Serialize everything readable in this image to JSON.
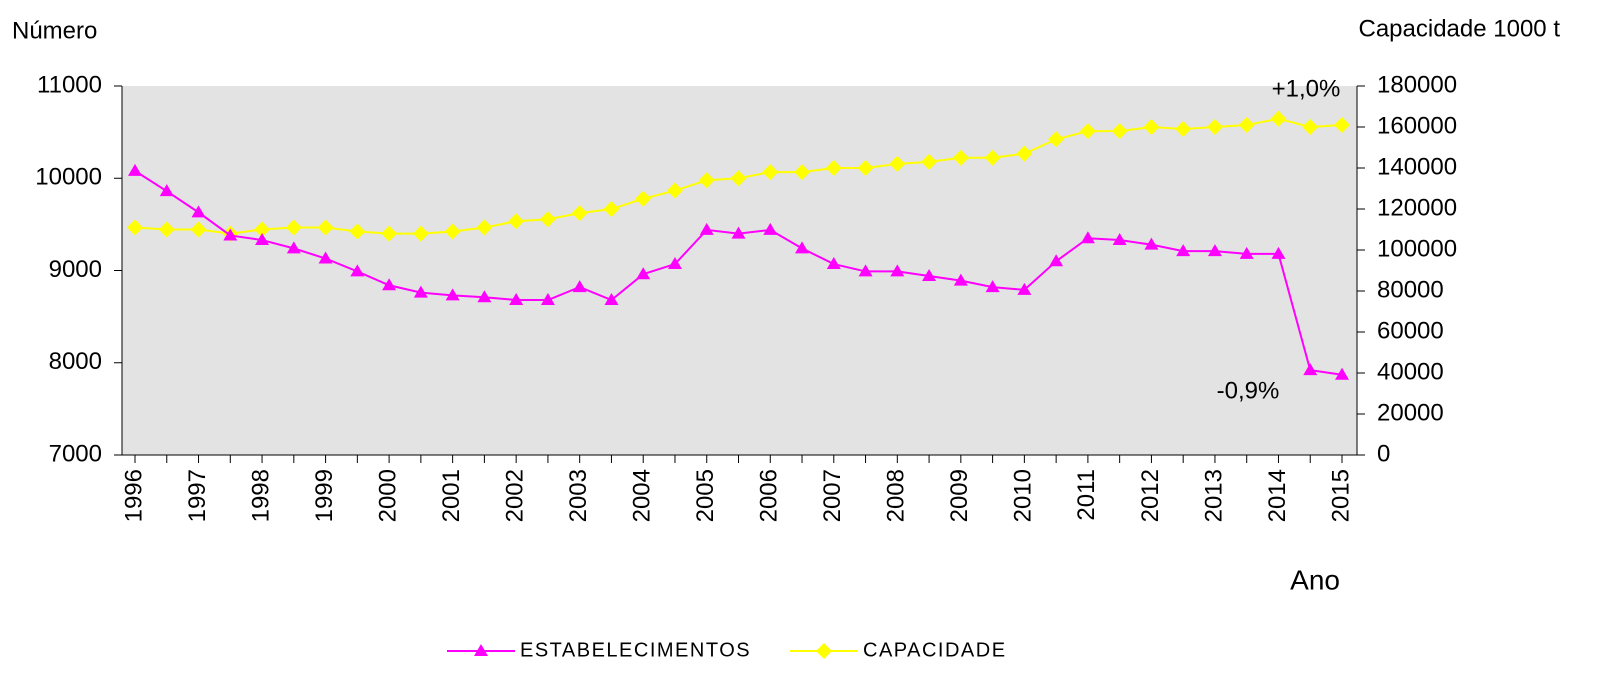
{
  "chart_data": {
    "type": "line",
    "y_label": "Número",
    "y2_label": "Capacidade 1000 t",
    "x_label": "Ano",
    "annotations": [
      "+1,0%",
      "-0,9%"
    ],
    "categories": [
      "1996",
      null,
      "1997",
      null,
      "1998",
      null,
      "1999",
      null,
      "2000",
      null,
      "2001",
      null,
      "2002",
      null,
      "2003",
      null,
      "2004",
      null,
      "2005",
      null,
      "2006",
      null,
      "2007",
      null,
      "2008",
      null,
      "2009",
      null,
      "2010",
      null,
      "2011",
      null,
      "2012",
      null,
      "2013",
      null,
      "2014",
      null,
      "2015"
    ],
    "series": [
      {
        "name": "ESTABELECIMENTOS",
        "color": "#ff00ff",
        "marker": "triangle",
        "values": [
          10080,
          9860,
          9630,
          9380,
          9330,
          9240,
          9130,
          8990,
          8840,
          8760,
          8730,
          8710,
          8680,
          8680,
          8820,
          8680,
          8960,
          9070,
          9440,
          9400,
          9440,
          9240,
          9070,
          8990,
          8990,
          8940,
          8890,
          8820,
          8790,
          9100,
          9350,
          9330,
          9280,
          9210,
          9210,
          9180,
          9180,
          7920,
          7870
        ]
      },
      {
        "name": "CAPACIDADE",
        "color": "#ffff00",
        "marker": "diamond",
        "axis": "y2",
        "values": [
          111000,
          110000,
          110000,
          108000,
          110000,
          111000,
          111000,
          109000,
          108000,
          108000,
          109000,
          111000,
          114000,
          115000,
          118000,
          120000,
          125000,
          129000,
          134000,
          135000,
          138000,
          138000,
          140000,
          140000,
          142000,
          143000,
          145000,
          145000,
          147000,
          154000,
          158000,
          158000,
          160000,
          159000,
          160000,
          161000,
          164000,
          160000,
          161000
        ]
      }
    ],
    "ylim": [
      7000,
      11000
    ],
    "yticks": [
      7000,
      8000,
      9000,
      10000,
      11000
    ],
    "y2lim": [
      0,
      180000
    ],
    "y2ticks": [
      0,
      20000,
      40000,
      60000,
      80000,
      100000,
      120000,
      140000,
      160000,
      180000
    ],
    "grid": false,
    "legend": "bottom"
  }
}
